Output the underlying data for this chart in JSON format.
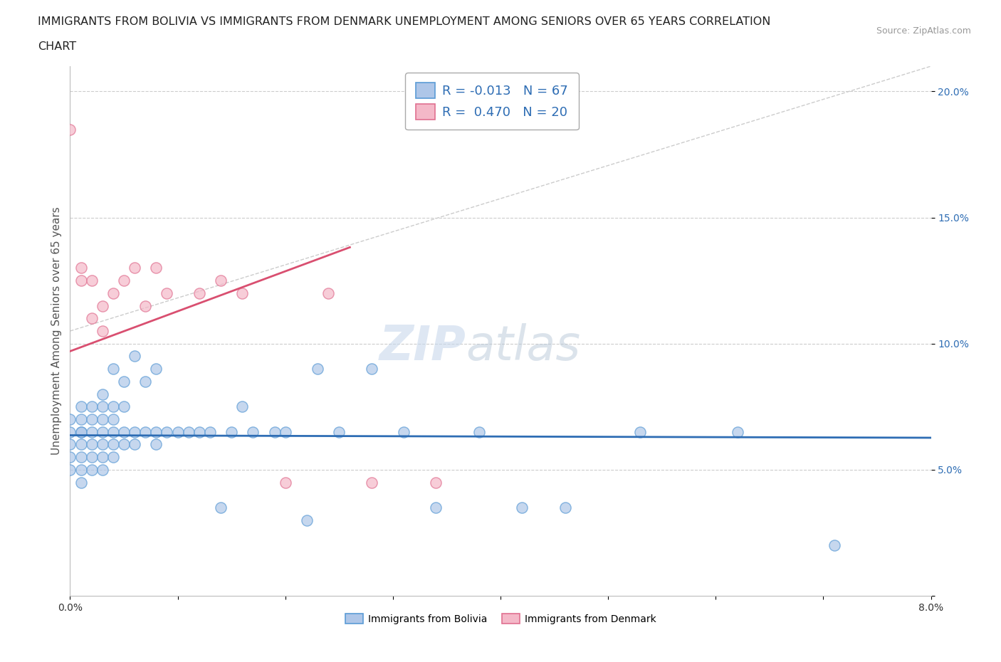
{
  "title_line1": "IMMIGRANTS FROM BOLIVIA VS IMMIGRANTS FROM DENMARK UNEMPLOYMENT AMONG SENIORS OVER 65 YEARS CORRELATION",
  "title_line2": "CHART",
  "source": "Source: ZipAtlas.com",
  "ylabel": "Unemployment Among Seniors over 65 years",
  "xlim": [
    0.0,
    0.08
  ],
  "ylim": [
    0.0,
    0.21
  ],
  "bolivia_color": "#aec6e8",
  "bolivia_edge": "#5b9bd5",
  "denmark_color": "#f4b8c8",
  "denmark_edge": "#e07090",
  "bolivia_line_color": "#2e6db4",
  "denmark_line_color": "#d94f70",
  "diag_line_color": "#cccccc",
  "grid_color": "#cccccc",
  "R_bolivia": -0.013,
  "N_bolivia": 67,
  "R_denmark": 0.47,
  "N_denmark": 20,
  "legend_label_bolivia": "Immigrants from Bolivia",
  "legend_label_denmark": "Immigrants from Denmark",
  "bolivia_x": [
    0.0,
    0.0,
    0.0,
    0.0,
    0.0,
    0.001,
    0.001,
    0.001,
    0.001,
    0.001,
    0.001,
    0.001,
    0.001,
    0.002,
    0.002,
    0.002,
    0.002,
    0.002,
    0.002,
    0.003,
    0.003,
    0.003,
    0.003,
    0.003,
    0.003,
    0.003,
    0.004,
    0.004,
    0.004,
    0.004,
    0.004,
    0.004,
    0.005,
    0.005,
    0.005,
    0.005,
    0.006,
    0.006,
    0.006,
    0.007,
    0.007,
    0.008,
    0.008,
    0.008,
    0.009,
    0.01,
    0.011,
    0.012,
    0.013,
    0.014,
    0.015,
    0.016,
    0.017,
    0.019,
    0.02,
    0.022,
    0.023,
    0.025,
    0.028,
    0.031,
    0.034,
    0.038,
    0.042,
    0.046,
    0.053,
    0.062,
    0.071
  ],
  "bolivia_y": [
    0.05,
    0.055,
    0.06,
    0.065,
    0.07,
    0.045,
    0.05,
    0.055,
    0.06,
    0.065,
    0.065,
    0.07,
    0.075,
    0.05,
    0.055,
    0.06,
    0.065,
    0.07,
    0.075,
    0.05,
    0.055,
    0.06,
    0.065,
    0.07,
    0.075,
    0.08,
    0.055,
    0.06,
    0.065,
    0.07,
    0.075,
    0.09,
    0.06,
    0.065,
    0.075,
    0.085,
    0.06,
    0.065,
    0.095,
    0.065,
    0.085,
    0.06,
    0.065,
    0.09,
    0.065,
    0.065,
    0.065,
    0.065,
    0.065,
    0.035,
    0.065,
    0.075,
    0.065,
    0.065,
    0.065,
    0.03,
    0.09,
    0.065,
    0.09,
    0.065,
    0.035,
    0.065,
    0.035,
    0.035,
    0.065,
    0.065,
    0.02
  ],
  "denmark_x": [
    0.0,
    0.001,
    0.001,
    0.002,
    0.002,
    0.003,
    0.003,
    0.004,
    0.005,
    0.006,
    0.007,
    0.008,
    0.009,
    0.012,
    0.014,
    0.016,
    0.02,
    0.024,
    0.028,
    0.034
  ],
  "denmark_y": [
    0.185,
    0.13,
    0.125,
    0.125,
    0.11,
    0.115,
    0.105,
    0.12,
    0.125,
    0.13,
    0.115,
    0.13,
    0.12,
    0.12,
    0.125,
    0.12,
    0.045,
    0.12,
    0.045,
    0.045
  ],
  "watermark_zip": "ZIP",
  "watermark_atlas": "atlas",
  "title_fontsize": 11.5,
  "axis_label_fontsize": 11,
  "tick_fontsize": 10,
  "legend_fontsize": 13
}
